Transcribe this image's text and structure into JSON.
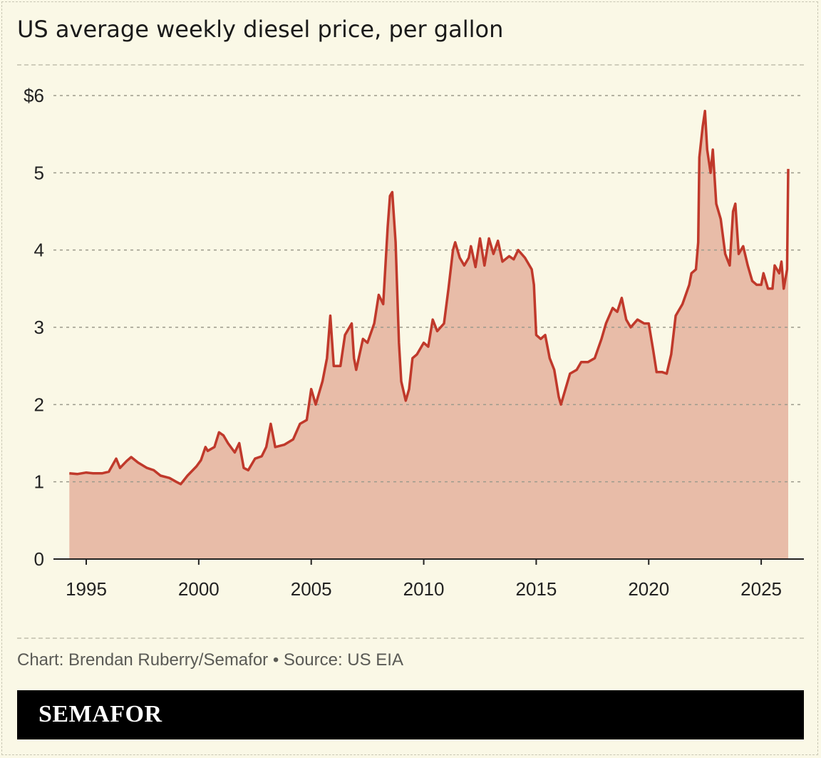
{
  "title": "US average weekly diesel price, per gallon",
  "credit": "Chart: Brendan Ruberry/Semafor • Source: US EIA",
  "brand": "SEMAFOR",
  "colors": {
    "background": "#faf8e6",
    "line": "#c0392b",
    "fill": "#e8bca8",
    "brand_bar": "#000000"
  },
  "chart_data": {
    "type": "area",
    "title": "US average weekly diesel price, per gallon",
    "xlabel": "",
    "ylabel": "",
    "xlim": [
      1994,
      2026.5
    ],
    "ylim": [
      0,
      6
    ],
    "grid": true,
    "x_ticks": [
      1995,
      2000,
      2005,
      2010,
      2015,
      2020,
      2025
    ],
    "x_tick_labels": [
      "1995",
      "2000",
      "2005",
      "2010",
      "2015",
      "2020",
      "2025"
    ],
    "y_ticks": [
      0,
      1,
      2,
      3,
      4,
      5,
      6
    ],
    "y_tick_labels": [
      "0",
      "1",
      "2",
      "3",
      "4",
      "5",
      "$6"
    ],
    "points": [
      [
        1994.25,
        1.11
      ],
      [
        1994.6,
        1.1
      ],
      [
        1995.0,
        1.12
      ],
      [
        1995.3,
        1.11
      ],
      [
        1995.7,
        1.11
      ],
      [
        1996.0,
        1.13
      ],
      [
        1996.33,
        1.3
      ],
      [
        1996.5,
        1.18
      ],
      [
        1996.8,
        1.27
      ],
      [
        1997.0,
        1.32
      ],
      [
        1997.3,
        1.25
      ],
      [
        1997.7,
        1.18
      ],
      [
        1998.0,
        1.15
      ],
      [
        1998.3,
        1.08
      ],
      [
        1998.7,
        1.05
      ],
      [
        1999.0,
        1.0
      ],
      [
        1999.2,
        0.97
      ],
      [
        1999.5,
        1.08
      ],
      [
        1999.9,
        1.2
      ],
      [
        2000.1,
        1.28
      ],
      [
        2000.3,
        1.45
      ],
      [
        2000.4,
        1.4
      ],
      [
        2000.7,
        1.45
      ],
      [
        2000.9,
        1.64
      ],
      [
        2001.1,
        1.6
      ],
      [
        2001.3,
        1.5
      ],
      [
        2001.6,
        1.38
      ],
      [
        2001.8,
        1.5
      ],
      [
        2002.0,
        1.18
      ],
      [
        2002.2,
        1.15
      ],
      [
        2002.5,
        1.3
      ],
      [
        2002.8,
        1.33
      ],
      [
        2003.0,
        1.45
      ],
      [
        2003.2,
        1.75
      ],
      [
        2003.4,
        1.45
      ],
      [
        2003.8,
        1.48
      ],
      [
        2004.2,
        1.55
      ],
      [
        2004.5,
        1.75
      ],
      [
        2004.8,
        1.8
      ],
      [
        2005.0,
        2.2
      ],
      [
        2005.2,
        2.0
      ],
      [
        2005.5,
        2.3
      ],
      [
        2005.7,
        2.6
      ],
      [
        2005.85,
        3.15
      ],
      [
        2006.0,
        2.5
      ],
      [
        2006.3,
        2.5
      ],
      [
        2006.5,
        2.9
      ],
      [
        2006.8,
        3.05
      ],
      [
        2006.9,
        2.6
      ],
      [
        2007.0,
        2.45
      ],
      [
        2007.3,
        2.85
      ],
      [
        2007.5,
        2.8
      ],
      [
        2007.8,
        3.05
      ],
      [
        2008.0,
        3.42
      ],
      [
        2008.2,
        3.3
      ],
      [
        2008.4,
        4.3
      ],
      [
        2008.5,
        4.7
      ],
      [
        2008.6,
        4.75
      ],
      [
        2008.75,
        4.1
      ],
      [
        2008.9,
        2.8
      ],
      [
        2009.0,
        2.3
      ],
      [
        2009.2,
        2.05
      ],
      [
        2009.35,
        2.2
      ],
      [
        2009.5,
        2.6
      ],
      [
        2009.7,
        2.65
      ],
      [
        2010.0,
        2.8
      ],
      [
        2010.2,
        2.75
      ],
      [
        2010.4,
        3.1
      ],
      [
        2010.6,
        2.95
      ],
      [
        2010.9,
        3.05
      ],
      [
        2011.1,
        3.5
      ],
      [
        2011.3,
        4.0
      ],
      [
        2011.4,
        4.1
      ],
      [
        2011.6,
        3.9
      ],
      [
        2011.8,
        3.8
      ],
      [
        2012.0,
        3.9
      ],
      [
        2012.1,
        4.05
      ],
      [
        2012.3,
        3.78
      ],
      [
        2012.5,
        4.15
      ],
      [
        2012.7,
        3.8
      ],
      [
        2012.9,
        4.15
      ],
      [
        2013.1,
        3.95
      ],
      [
        2013.3,
        4.12
      ],
      [
        2013.5,
        3.85
      ],
      [
        2013.8,
        3.92
      ],
      [
        2014.0,
        3.88
      ],
      [
        2014.2,
        4.0
      ],
      [
        2014.5,
        3.9
      ],
      [
        2014.8,
        3.75
      ],
      [
        2014.9,
        3.55
      ],
      [
        2015.0,
        2.9
      ],
      [
        2015.2,
        2.85
      ],
      [
        2015.4,
        2.9
      ],
      [
        2015.6,
        2.6
      ],
      [
        2015.8,
        2.45
      ],
      [
        2016.0,
        2.1
      ],
      [
        2016.1,
        2.0
      ],
      [
        2016.3,
        2.2
      ],
      [
        2016.5,
        2.4
      ],
      [
        2016.8,
        2.45
      ],
      [
        2017.0,
        2.55
      ],
      [
        2017.3,
        2.55
      ],
      [
        2017.6,
        2.6
      ],
      [
        2017.9,
        2.85
      ],
      [
        2018.1,
        3.05
      ],
      [
        2018.4,
        3.25
      ],
      [
        2018.6,
        3.2
      ],
      [
        2018.8,
        3.38
      ],
      [
        2019.0,
        3.1
      ],
      [
        2019.2,
        3.0
      ],
      [
        2019.5,
        3.1
      ],
      [
        2019.8,
        3.05
      ],
      [
        2020.0,
        3.05
      ],
      [
        2020.2,
        2.7
      ],
      [
        2020.35,
        2.42
      ],
      [
        2020.6,
        2.42
      ],
      [
        2020.8,
        2.4
      ],
      [
        2021.0,
        2.65
      ],
      [
        2021.2,
        3.15
      ],
      [
        2021.5,
        3.3
      ],
      [
        2021.8,
        3.55
      ],
      [
        2021.9,
        3.7
      ],
      [
        2022.1,
        3.75
      ],
      [
        2022.2,
        4.1
      ],
      [
        2022.25,
        5.2
      ],
      [
        2022.4,
        5.6
      ],
      [
        2022.5,
        5.8
      ],
      [
        2022.6,
        5.3
      ],
      [
        2022.75,
        5.0
      ],
      [
        2022.85,
        5.3
      ],
      [
        2023.0,
        4.6
      ],
      [
        2023.2,
        4.4
      ],
      [
        2023.4,
        3.95
      ],
      [
        2023.6,
        3.8
      ],
      [
        2023.75,
        4.5
      ],
      [
        2023.85,
        4.6
      ],
      [
        2024.0,
        3.95
      ],
      [
        2024.2,
        4.05
      ],
      [
        2024.4,
        3.8
      ],
      [
        2024.6,
        3.6
      ],
      [
        2024.8,
        3.55
      ],
      [
        2025.0,
        3.55
      ],
      [
        2025.1,
        3.7
      ],
      [
        2025.3,
        3.5
      ],
      [
        2025.5,
        3.5
      ],
      [
        2025.6,
        3.8
      ],
      [
        2025.8,
        3.7
      ],
      [
        2025.9,
        3.85
      ],
      [
        2026.0,
        3.5
      ],
      [
        2026.15,
        3.75
      ],
      [
        2026.2,
        5.05
      ]
    ]
  }
}
